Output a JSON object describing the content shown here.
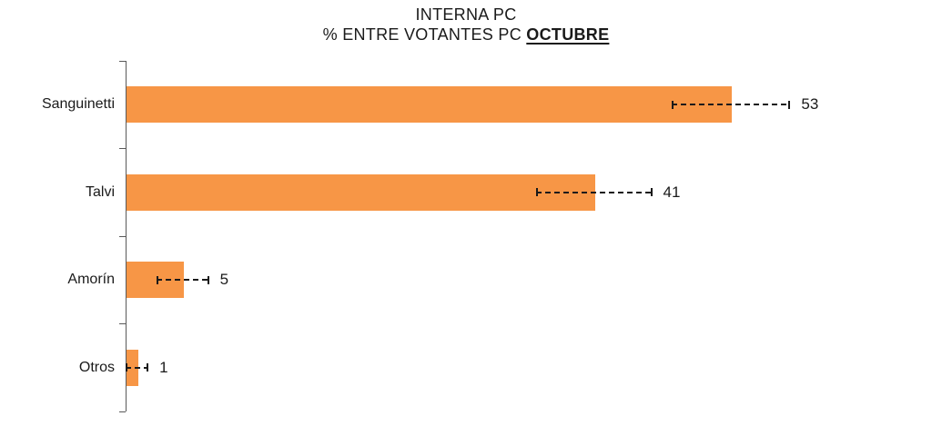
{
  "chart_data": {
    "type": "bar",
    "orientation": "horizontal",
    "title": "INTERNA PC",
    "subtitle_prefix": "% ENTRE VOTANTES PC ",
    "subtitle_emphasis": "OCTUBRE",
    "categories": [
      "Sanguinetti",
      "Talvi",
      "Amorín",
      "Otros"
    ],
    "values": [
      53,
      41,
      5,
      1
    ],
    "value_labels": [
      "53",
      "41",
      "5",
      "1"
    ],
    "error_margins": [
      5.2,
      5.1,
      2.3,
      1.0
    ],
    "xlim": [
      0,
      70
    ],
    "grid": false,
    "legend": false,
    "bar_color": "#F79646",
    "axis_color": "#595959",
    "text_color": "#1a1a1a",
    "error_bar_color": "#1a1a1a",
    "background_color": "#ffffff"
  }
}
